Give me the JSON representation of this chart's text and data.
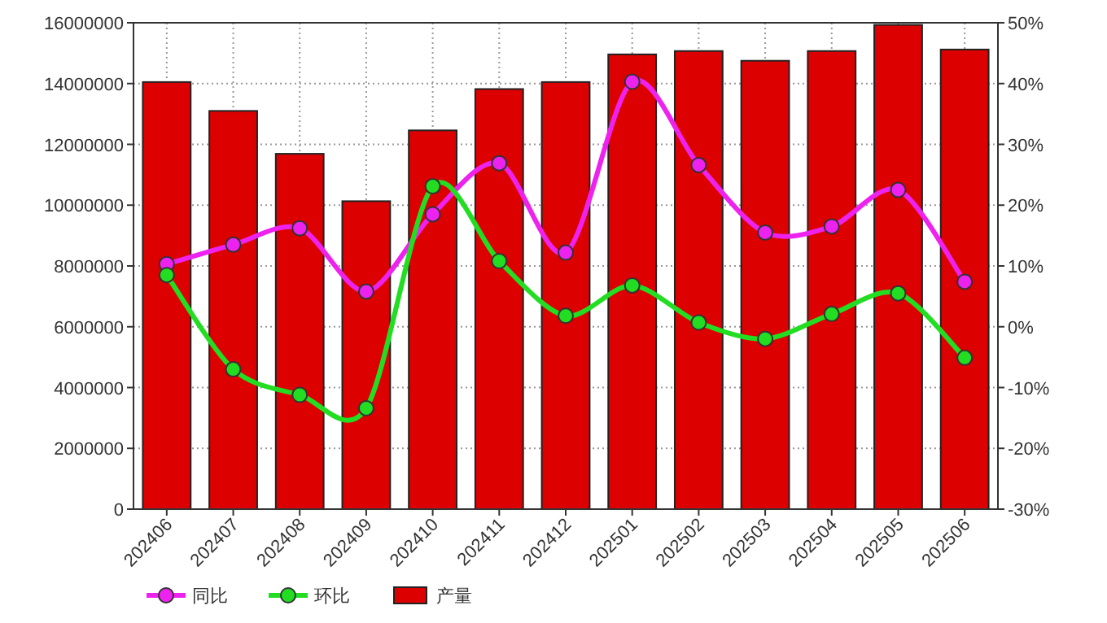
{
  "chart_data": {
    "type": "bar",
    "categories": [
      "202406",
      "202407",
      "202408",
      "202409",
      "202410",
      "202411",
      "202412",
      "202501",
      "202502",
      "202503",
      "202504",
      "202505",
      "202506"
    ],
    "series": [
      {
        "name": "同比",
        "type": "line",
        "axis": "y2",
        "color": "#ee22ee",
        "values": [
          10.3,
          13.5,
          16.2,
          5.8,
          18.5,
          26.9,
          12.2,
          40.3,
          26.6,
          15.5,
          16.5,
          22.5,
          7.4
        ]
      },
      {
        "name": "环比",
        "type": "line",
        "axis": "y2",
        "color": "#22dd22",
        "values": [
          8.5,
          -7.0,
          -11.2,
          -13.4,
          23.1,
          10.8,
          1.8,
          6.8,
          0.7,
          -2.0,
          2.1,
          5.5,
          -5.1
        ]
      },
      {
        "name": "产量",
        "color": "#dd0000",
        "values": [
          14050000,
          13100000,
          11690000,
          10130000,
          12460000,
          13820000,
          14050000,
          14960000,
          15070000,
          14750000,
          15070000,
          15930000,
          15120000
        ]
      }
    ],
    "ylim": [
      0,
      16000000
    ],
    "yticks": [
      0,
      2000000,
      4000000,
      6000000,
      8000000,
      10000000,
      12000000,
      14000000,
      16000000
    ],
    "y2lim": [
      -30,
      50
    ],
    "y2ticks": [
      {
        "value": -30,
        "label": "-30%"
      },
      {
        "value": -20,
        "label": "-20%"
      },
      {
        "value": -10,
        "label": "-10%"
      },
      {
        "value": 0,
        "label": "0%"
      },
      {
        "value": 10,
        "label": "10%"
      },
      {
        "value": 20,
        "label": "20%"
      },
      {
        "value": 30,
        "label": "30%"
      },
      {
        "value": 40,
        "label": "40%"
      },
      {
        "value": 50,
        "label": "50%"
      }
    ],
    "grid": true,
    "legend": "bottom left",
    "marker": "circle"
  }
}
